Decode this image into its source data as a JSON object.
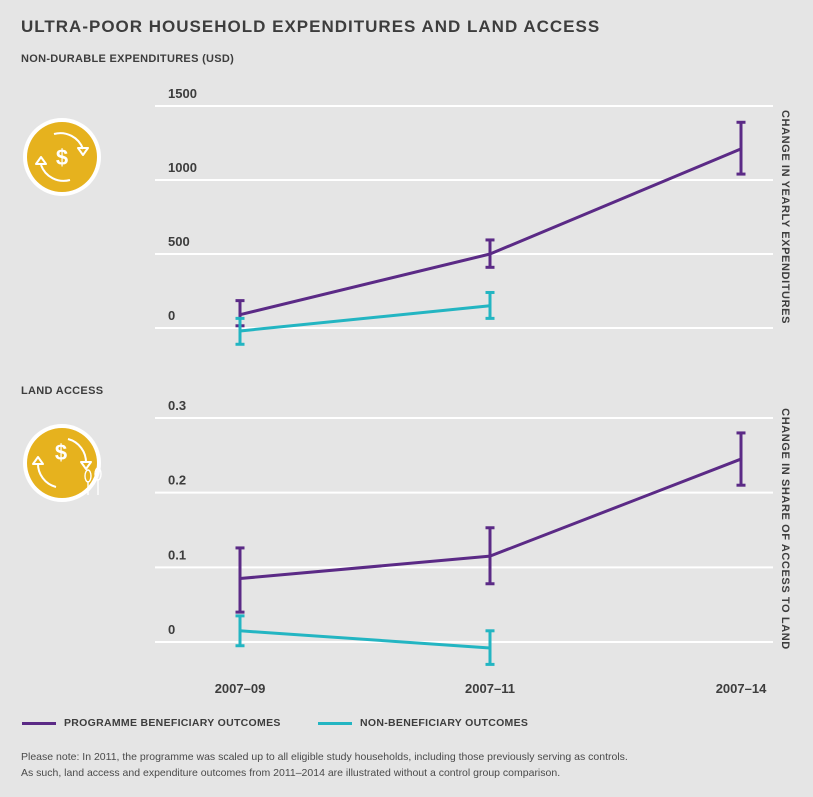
{
  "title": "ULTRA-POOR HOUSEHOLD EXPENDITURES AND LAND ACCESS",
  "legend": {
    "programme": "PROGRAMME BENEFICIARY OUTCOMES",
    "non": "NON-BENEFICIARY OUTCOMES"
  },
  "note": {
    "line1": "Please note: In 2011, the programme was scaled up to all eligible study households, including those previously serving as controls.",
    "line2": "As such, land access and expenditure outcomes from 2011–2014 are illustrated without a control group comparison."
  },
  "colors": {
    "programme": "#5b2a86",
    "non": "#23b5c2",
    "icon_fill": "#e6b21e",
    "grid": "#ffffff",
    "background": "#e5e5e5"
  },
  "icons": [
    "money-cycle-icon",
    "money-crops-cycle-icon"
  ],
  "chart_data": [
    {
      "type": "line",
      "title": "NON-DURABLE EXPENDITURES (USD)",
      "ylabel": "CHANGE IN YEARLY EXPENDITURES",
      "categories": [
        "2007–09",
        "2007–11",
        "2007–14"
      ],
      "y_ticks": [
        0,
        500,
        1000,
        1500
      ],
      "y_tick_labels": [
        "0",
        "500",
        "1000",
        "1500"
      ],
      "ylim": [
        0,
        1500
      ],
      "grid": true,
      "series": [
        {
          "name": "PROGRAMME BENEFICIARY OUTCOMES",
          "values": [
            90,
            500,
            1210
          ],
          "error_low": [
            15,
            410,
            1040
          ],
          "error_high": [
            185,
            595,
            1390
          ]
        },
        {
          "name": "NON-BENEFICIARY OUTCOMES",
          "values": [
            -20,
            150,
            null
          ],
          "error_low": [
            -110,
            65,
            null
          ],
          "error_high": [
            65,
            240,
            null
          ]
        }
      ]
    },
    {
      "type": "line",
      "title": "LAND ACCESS",
      "ylabel": "CHANGE IN SHARE OF ACCESS TO LAND",
      "categories": [
        "2007–09",
        "2007–11",
        "2007–14"
      ],
      "y_ticks": [
        0,
        0.1,
        0.2,
        0.3
      ],
      "y_tick_labels": [
        "0",
        "0.1",
        "0.2",
        "0.3"
      ],
      "ylim": [
        0,
        0.3
      ],
      "grid": true,
      "series": [
        {
          "name": "PROGRAMME BENEFICIARY OUTCOMES",
          "values": [
            0.085,
            0.115,
            0.245
          ],
          "error_low": [
            0.04,
            0.078,
            0.21
          ],
          "error_high": [
            0.126,
            0.153,
            0.28
          ]
        },
        {
          "name": "NON-BENEFICIARY OUTCOMES",
          "values": [
            0.015,
            -0.008,
            null
          ],
          "error_low": [
            -0.005,
            -0.03,
            null
          ],
          "error_high": [
            0.035,
            0.015,
            null
          ]
        }
      ]
    }
  ]
}
